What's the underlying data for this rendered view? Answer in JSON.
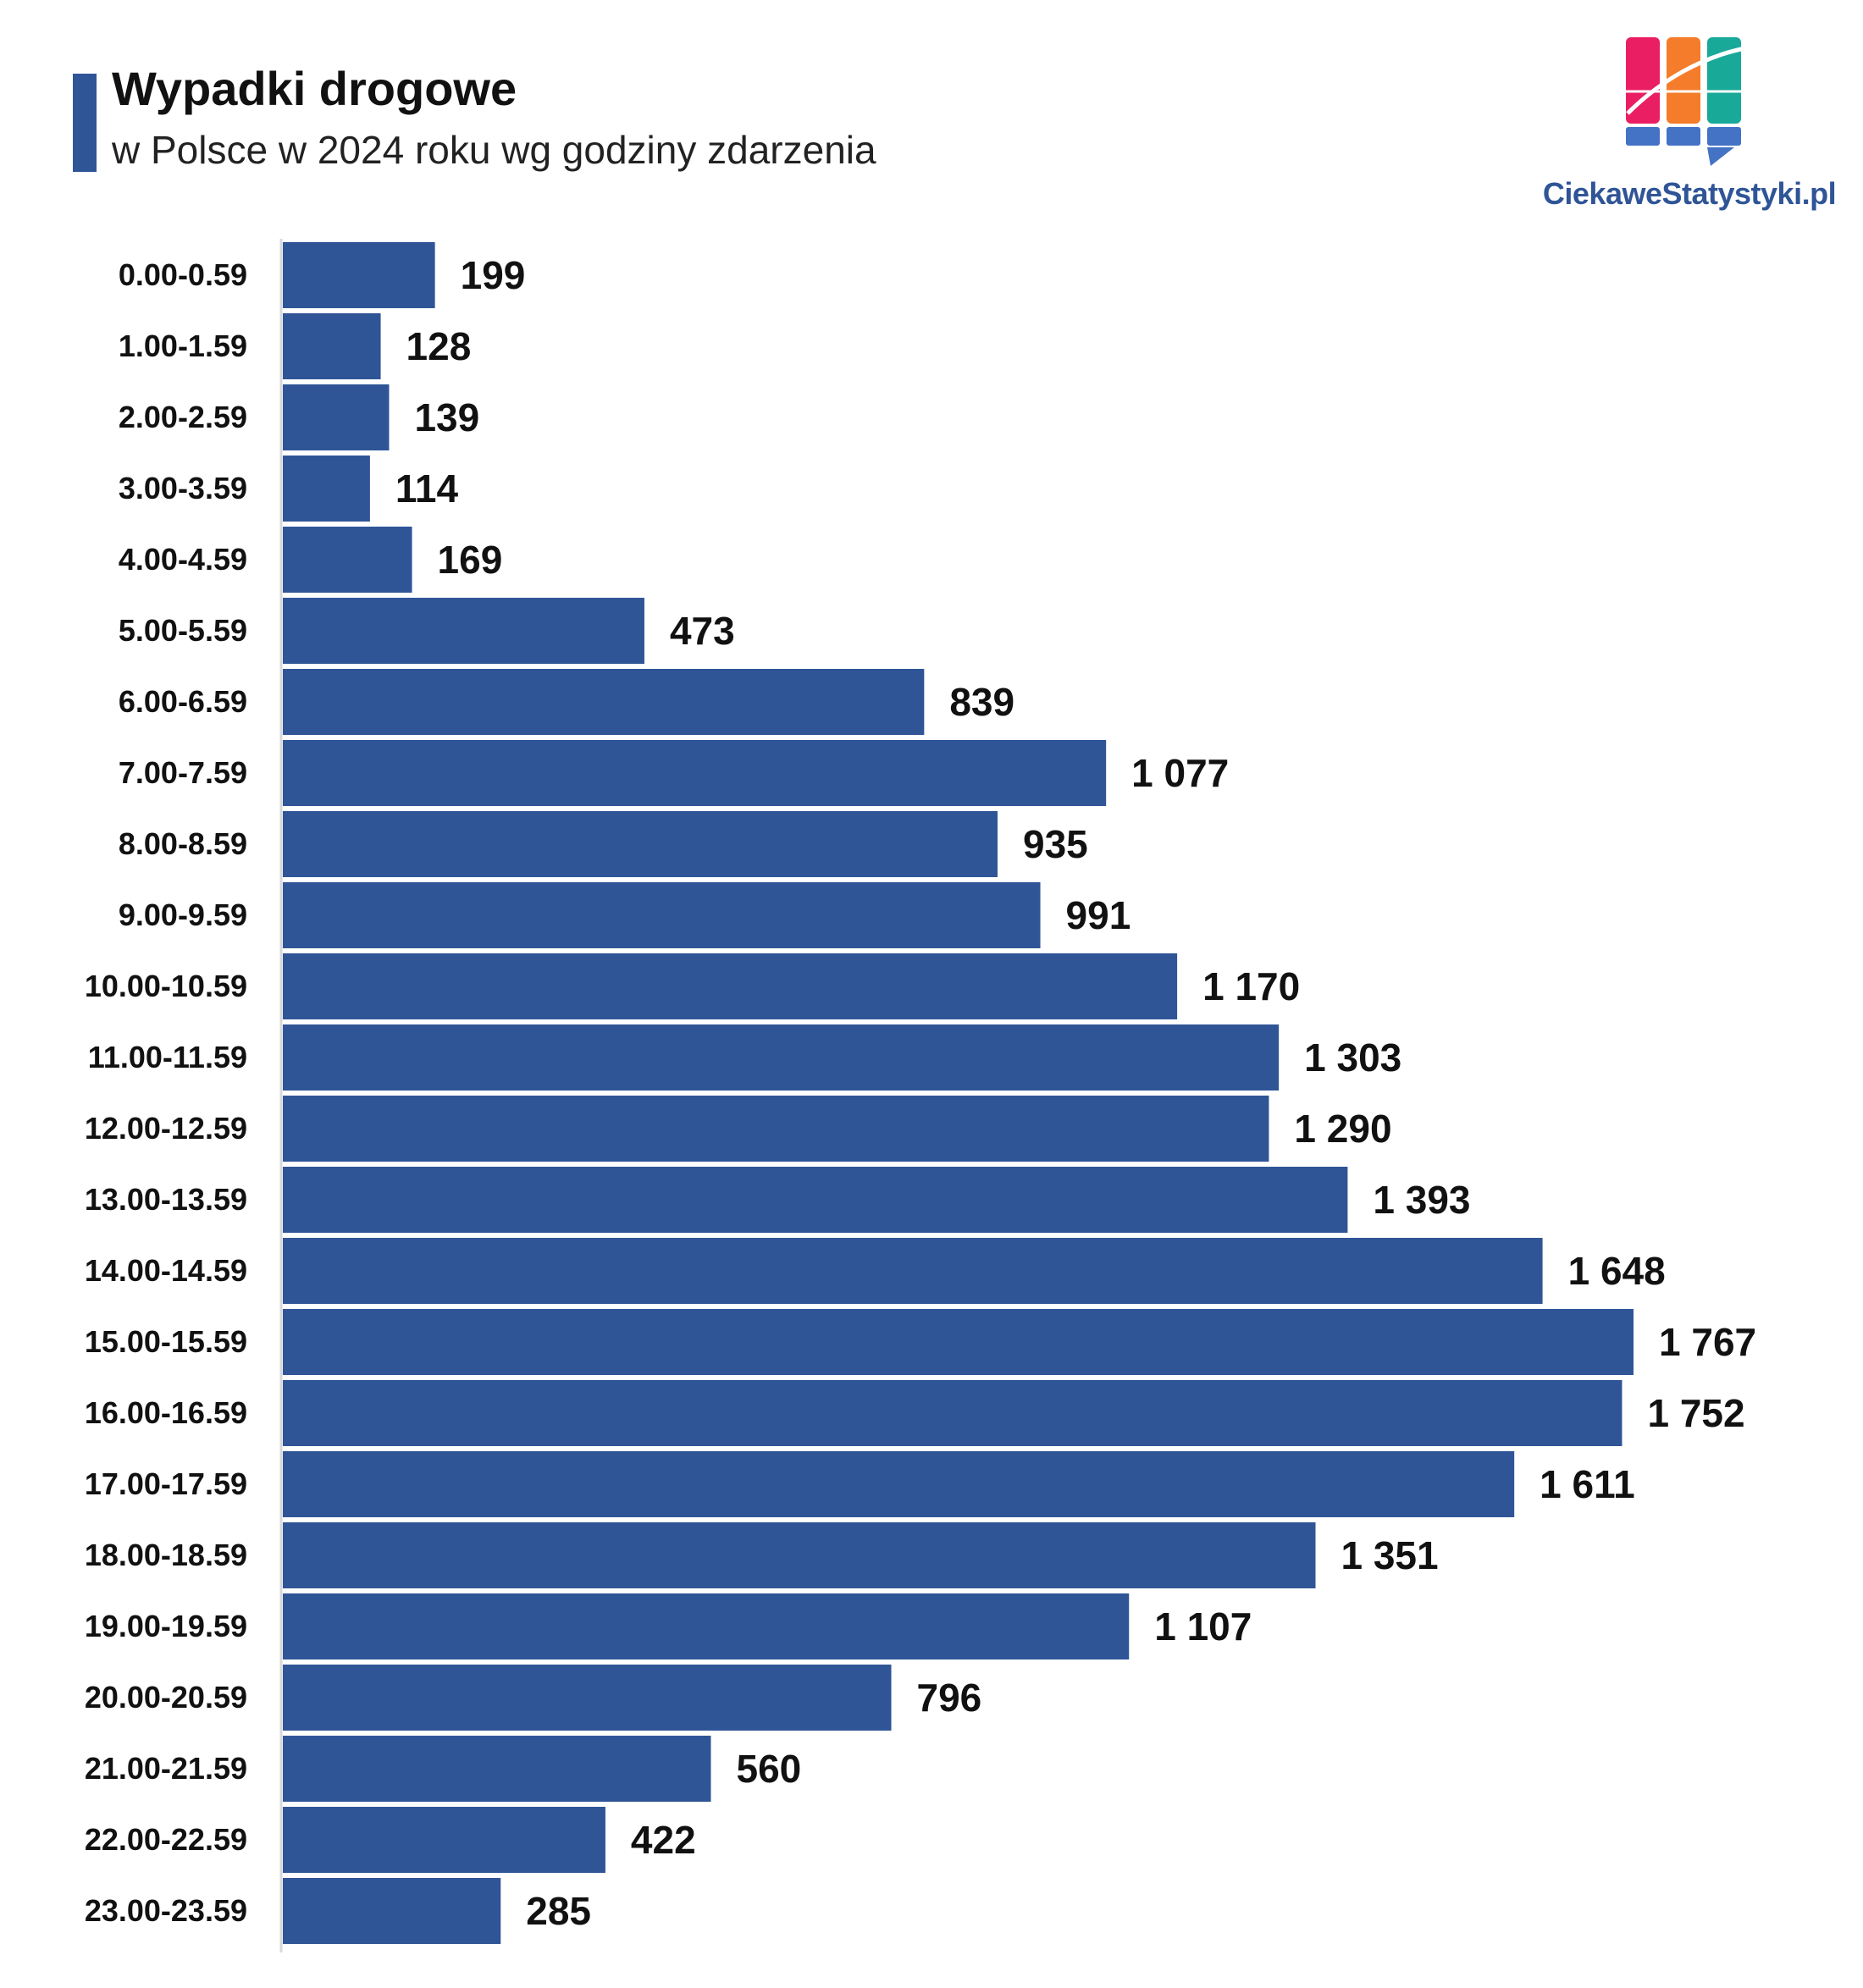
{
  "title": "Wypadki drogowe",
  "subtitle": "w Polsce w 2024 roku wg godziny zdarzenia",
  "logo": {
    "text": "CiekaweStatystyki.pl"
  },
  "colors": {
    "bar": "#2f5597",
    "axis": "#d9d9d9",
    "logo_pink": "#e91e63",
    "logo_orange": "#f47c2a",
    "logo_teal": "#18a999",
    "logo_blue": "#4472c4"
  },
  "chart_data": {
    "type": "bar",
    "orientation": "horizontal",
    "title": "Wypadki drogowe",
    "subtitle": "w Polsce w 2024 roku wg godziny zdarzenia",
    "categories": [
      "0.00-0.59",
      "1.00-1.59",
      "2.00-2.59",
      "3.00-3.59",
      "4.00-4.59",
      "5.00-5.59",
      "6.00-6.59",
      "7.00-7.59",
      "8.00-8.59",
      "9.00-9.59",
      "10.00-10.59",
      "11.00-11.59",
      "12.00-12.59",
      "13.00-13.59",
      "14.00-14.59",
      "15.00-15.59",
      "16.00-16.59",
      "17.00-17.59",
      "18.00-18.59",
      "19.00-19.59",
      "20.00-20.59",
      "21.00-21.59",
      "22.00-22.59",
      "23.00-23.59"
    ],
    "values": [
      199,
      128,
      139,
      114,
      169,
      473,
      839,
      1077,
      935,
      991,
      1170,
      1303,
      1290,
      1393,
      1648,
      1767,
      1752,
      1611,
      1351,
      1107,
      796,
      560,
      422,
      285
    ],
    "value_labels": [
      "199",
      "128",
      "139",
      "114",
      "169",
      "473",
      "839",
      "1 077",
      "935",
      "991",
      "1 170",
      "1 303",
      "1 290",
      "1 393",
      "1 648",
      "1 767",
      "1 752",
      "1 611",
      "1 351",
      "1 107",
      "796",
      "560",
      "422",
      "285"
    ],
    "xlim": [
      0,
      1767
    ],
    "grid": false,
    "legend": "none"
  }
}
